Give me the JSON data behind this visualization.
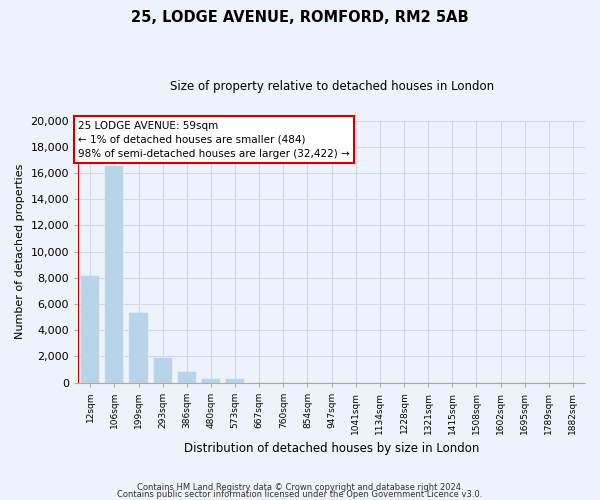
{
  "title": "25, LODGE AVENUE, ROMFORD, RM2 5AB",
  "subtitle": "Size of property relative to detached houses in London",
  "xlabel": "Distribution of detached houses by size in London",
  "ylabel": "Number of detached properties",
  "bar_labels": [
    "12sqm",
    "106sqm",
    "199sqm",
    "293sqm",
    "386sqm",
    "480sqm",
    "573sqm",
    "667sqm",
    "760sqm",
    "854sqm",
    "947sqm",
    "1041sqm",
    "1134sqm",
    "1228sqm",
    "1321sqm",
    "1415sqm",
    "1508sqm",
    "1602sqm",
    "1695sqm",
    "1789sqm",
    "1882sqm"
  ],
  "bar_values": [
    8100,
    16500,
    5300,
    1850,
    800,
    300,
    250,
    0,
    0,
    0,
    0,
    0,
    0,
    0,
    0,
    0,
    0,
    0,
    0,
    0,
    0
  ],
  "bar_color": "#b8d4e8",
  "ylim": [
    0,
    20000
  ],
  "yticks": [
    0,
    2000,
    4000,
    6000,
    8000,
    10000,
    12000,
    14000,
    16000,
    18000,
    20000
  ],
  "annotation_title": "25 LODGE AVENUE: 59sqm",
  "annotation_line1": "← 1% of detached houses are smaller (484)",
  "annotation_line2": "98% of semi-detached houses are larger (32,422) →",
  "annotation_box_facecolor": "#ffffff",
  "annotation_box_edgecolor": "#cc0000",
  "footer_line1": "Contains HM Land Registry data © Crown copyright and database right 2024.",
  "footer_line2": "Contains public sector information licensed under the Open Government Licence v3.0.",
  "bg_color": "#eef2fa",
  "plot_bg_color": "#eef2fa",
  "grid_color": "#d0d8e8",
  "red_line_color": "#cc0000",
  "spine_color": "#aaaaaa"
}
